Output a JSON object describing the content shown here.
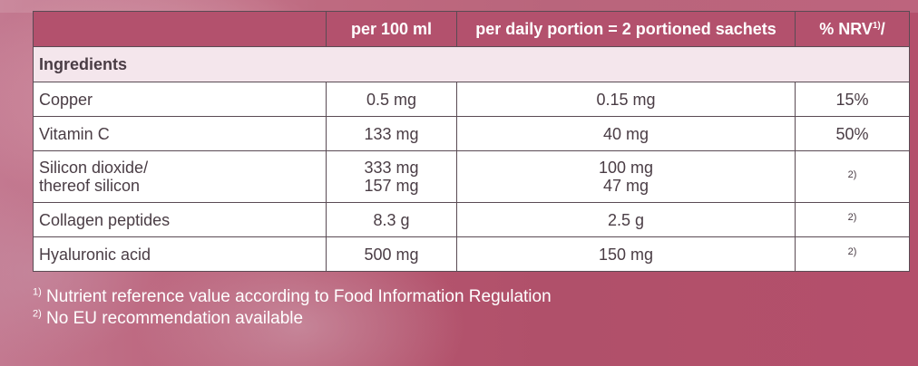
{
  "table": {
    "headers": [
      "",
      "per 100 ml",
      "per daily portion = 2 portioned sachets",
      "% NRV"
    ],
    "nrv_header_sup": "1)",
    "nrv_header_suffix": "/",
    "section_label": "Ingredients",
    "rows": [
      {
        "name": "Copper",
        "per100": "0.5 mg",
        "perDaily": "0.15 mg",
        "nrv": "15%"
      },
      {
        "name": "Vitamin C",
        "per100": "133 mg",
        "perDaily": "40 mg",
        "nrv": "50%"
      },
      {
        "name_line1": "Silicon dioxide/",
        "name_line2": "thereof silicon",
        "per100_line1": "333 mg",
        "per100_line2": "157 mg",
        "perDaily_line1": "100 mg",
        "perDaily_line2": "47 mg",
        "nrv": "2)"
      },
      {
        "name": "Collagen peptides",
        "per100": "8.3 g",
        "perDaily": "2.5 g",
        "nrv": "2)"
      },
      {
        "name": "Hyaluronic acid",
        "per100": "500 mg",
        "perDaily": "150 mg",
        "nrv": "2)"
      }
    ]
  },
  "footnotes": [
    {
      "mark": "1)",
      "text": " Nutrient reference value according to Food Information Regulation"
    },
    {
      "mark": "2)",
      "text": " No EU recommendation available"
    }
  ]
}
